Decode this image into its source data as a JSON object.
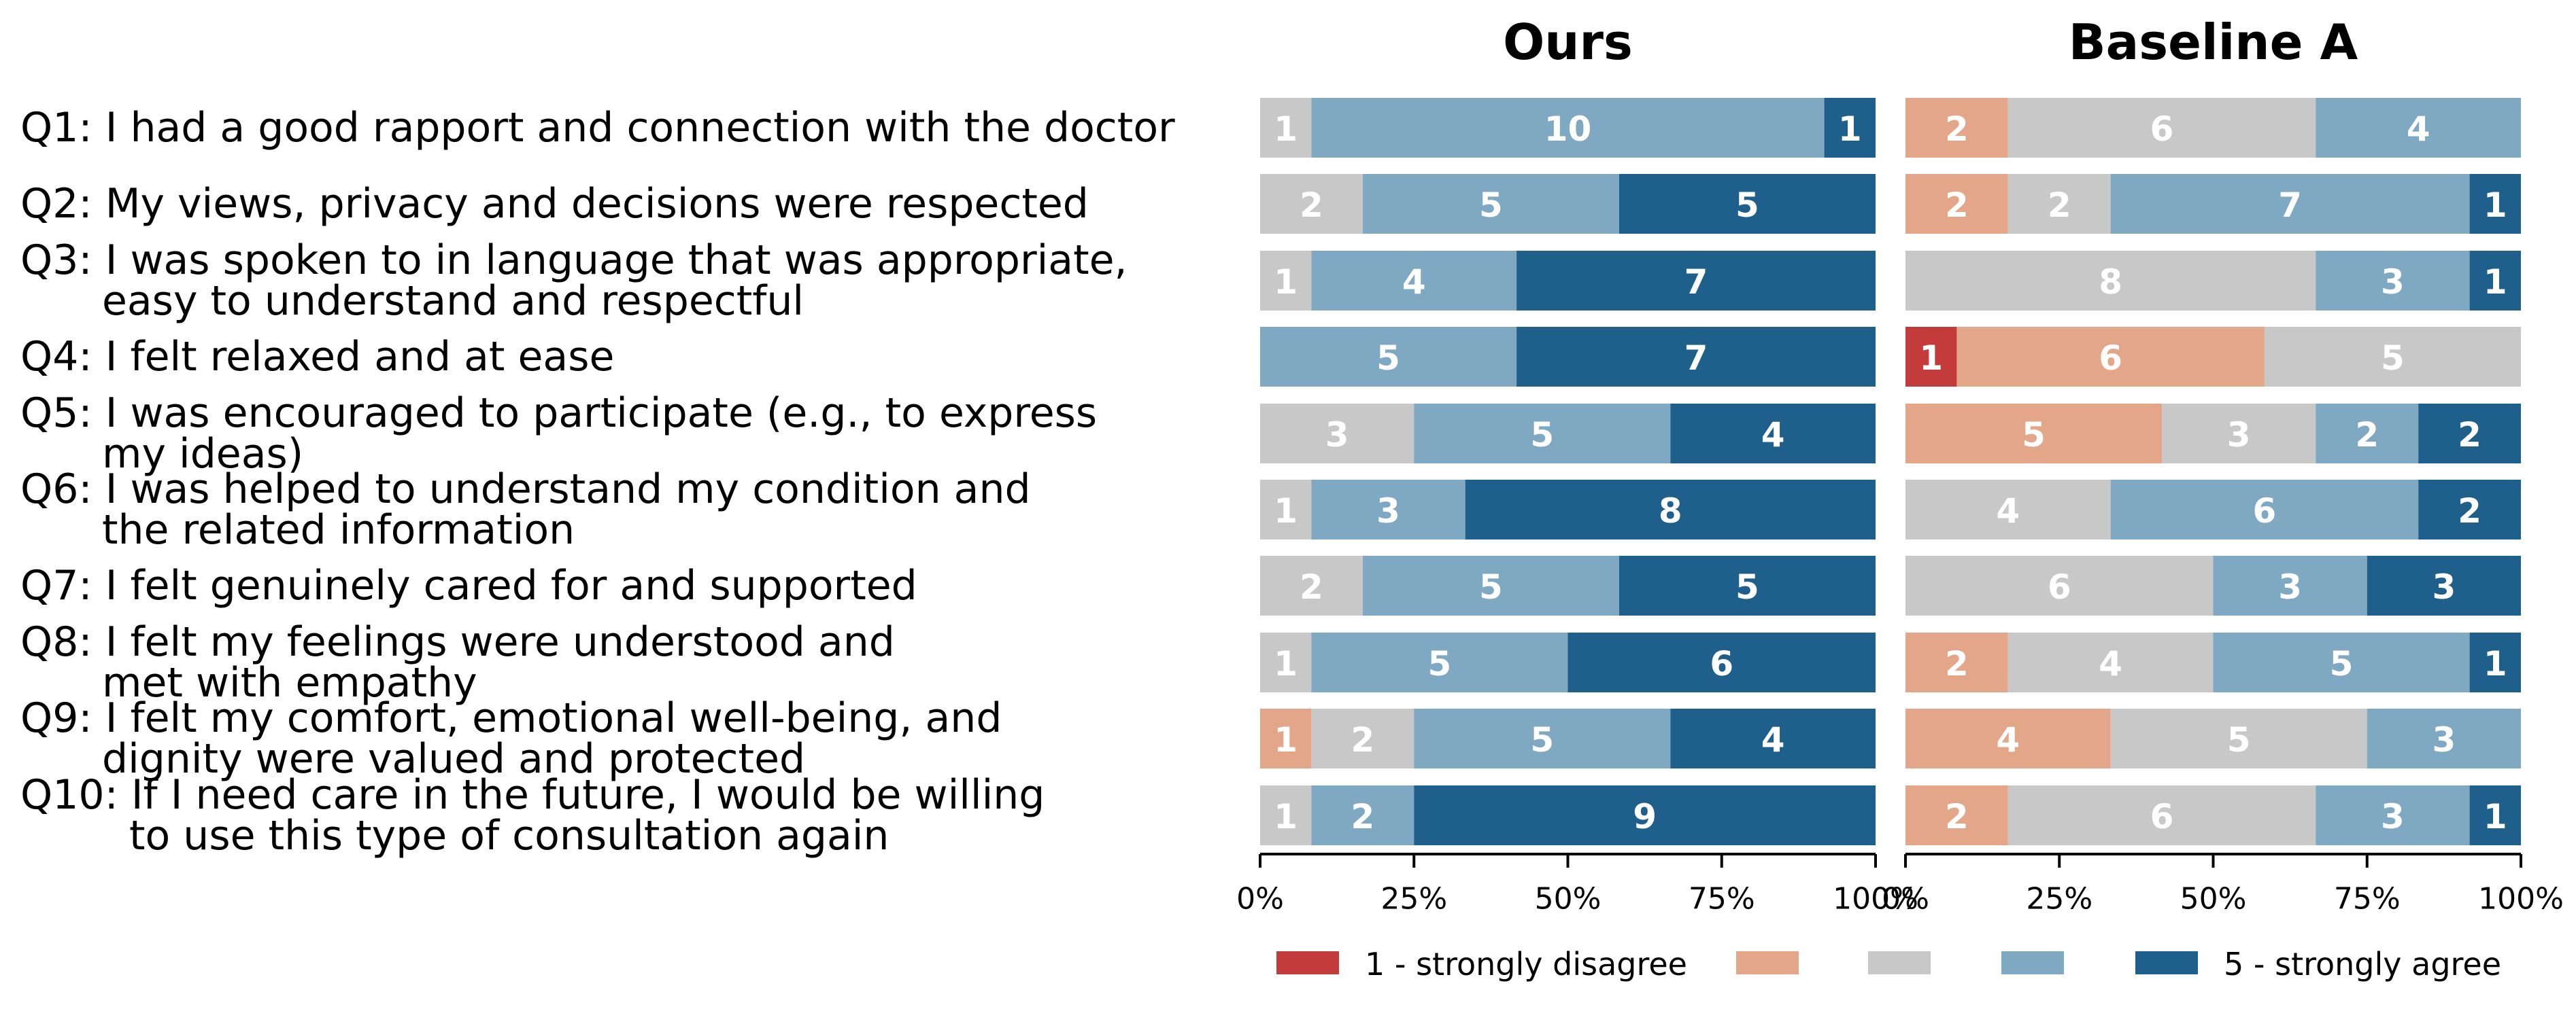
{
  "chart_data": {
    "type": "bar",
    "orientation": "horizontal-stacked-percent",
    "questions": [
      [
        "Q1: I had a good rapport and connection with the doctor"
      ],
      [
        "Q2: My views, privacy and decisions were respected"
      ],
      [
        "Q3: I was spoken to in language that was appropriate,",
        "easy to understand and respectful"
      ],
      [
        "Q4: I felt relaxed and at ease"
      ],
      [
        "Q5: I was encouraged to participate (e.g., to express",
        "my ideas)"
      ],
      [
        "Q6: I was helped to understand my condition and",
        "the related information"
      ],
      [
        "Q7: I felt genuinely cared for and supported"
      ],
      [
        "Q8: I felt my feelings were understood and",
        "met with empathy"
      ],
      [
        "Q9: I felt my comfort, emotional well-being, and",
        "dignity were valued and protected"
      ],
      [
        "Q10: If I need care in the future, I would be willing",
        "to use this type of consultation again"
      ]
    ],
    "panels": [
      {
        "title": "Ours",
        "counts": [
          [
            0,
            0,
            1,
            10,
            1
          ],
          [
            0,
            0,
            2,
            5,
            5
          ],
          [
            0,
            0,
            1,
            4,
            7
          ],
          [
            0,
            0,
            0,
            5,
            7
          ],
          [
            0,
            0,
            3,
            5,
            4
          ],
          [
            0,
            0,
            1,
            3,
            8
          ],
          [
            0,
            0,
            2,
            5,
            5
          ],
          [
            0,
            0,
            1,
            5,
            6
          ],
          [
            0,
            1,
            2,
            5,
            4
          ],
          [
            0,
            0,
            1,
            2,
            9
          ]
        ]
      },
      {
        "title": "Baseline A",
        "counts": [
          [
            0,
            2,
            6,
            4,
            0
          ],
          [
            0,
            2,
            2,
            7,
            1
          ],
          [
            0,
            0,
            8,
            3,
            1
          ],
          [
            1,
            6,
            5,
            0,
            0
          ],
          [
            0,
            5,
            3,
            2,
            2
          ],
          [
            0,
            0,
            4,
            6,
            2
          ],
          [
            0,
            0,
            6,
            3,
            3
          ],
          [
            0,
            2,
            4,
            5,
            1
          ],
          [
            0,
            4,
            5,
            3,
            0
          ],
          [
            0,
            2,
            6,
            3,
            1
          ]
        ]
      }
    ],
    "xticks": [
      "0%",
      "25%",
      "50%",
      "75%",
      "100%"
    ],
    "xlim": [
      0,
      100
    ],
    "legend": {
      "placement": "bottom-center",
      "entries": [
        "1 - strongly disagree",
        "",
        "",
        "",
        "5 - strongly agree"
      ]
    },
    "colors": [
      "#c33b3b",
      "#e4a688",
      "#c8c8c8",
      "#7fa8c3",
      "#1f5f8b"
    ]
  }
}
